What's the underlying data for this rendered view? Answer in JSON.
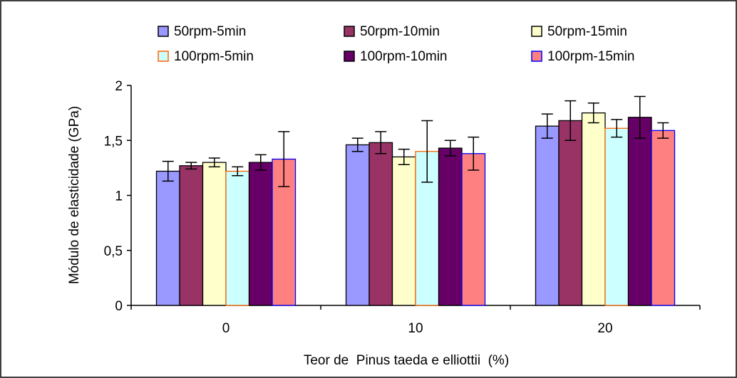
{
  "chart_data": {
    "type": "bar",
    "title": "",
    "xlabel": "Teor de  Pinus taeda e elliottii  (%)",
    "ylabel": "Módulo de elasticidade (GPa)",
    "categories": [
      "0",
      "10",
      "20"
    ],
    "ylim": [
      0,
      2
    ],
    "yticks": [
      "0",
      "0,5",
      "1",
      "1,5",
      "2"
    ],
    "yticks_values": [
      0,
      0.5,
      1,
      1.5,
      2
    ],
    "grid": false,
    "legend_position": "top",
    "series": [
      {
        "name": "50rpm-5min",
        "fill": "#9999ff",
        "stroke": "#000000",
        "values": [
          1.22,
          1.46,
          1.63
        ],
        "errors": [
          0.09,
          0.06,
          0.11
        ]
      },
      {
        "name": "50rpm-10min",
        "fill": "#993366",
        "stroke": "#000000",
        "values": [
          1.27,
          1.48,
          1.68
        ],
        "errors": [
          0.03,
          0.1,
          0.18
        ]
      },
      {
        "name": "50rpm-15min",
        "fill": "#ffffcc",
        "stroke": "#000000",
        "values": [
          1.3,
          1.35,
          1.75
        ],
        "errors": [
          0.04,
          0.07,
          0.09
        ]
      },
      {
        "name": "100rpm-5min",
        "fill": "#ccffff",
        "stroke": "#ff6600",
        "values": [
          1.22,
          1.4,
          1.61
        ],
        "errors": [
          0.04,
          0.28,
          0.08
        ]
      },
      {
        "name": "100rpm-10min",
        "fill": "#660066",
        "stroke": "#000000",
        "values": [
          1.3,
          1.43,
          1.71
        ],
        "errors": [
          0.07,
          0.07,
          0.19
        ]
      },
      {
        "name": "100rpm-15min",
        "fill": "#ff8080",
        "stroke": "#0000ff",
        "values": [
          1.33,
          1.38,
          1.59
        ],
        "errors": [
          0.25,
          0.15,
          0.07
        ]
      }
    ]
  }
}
